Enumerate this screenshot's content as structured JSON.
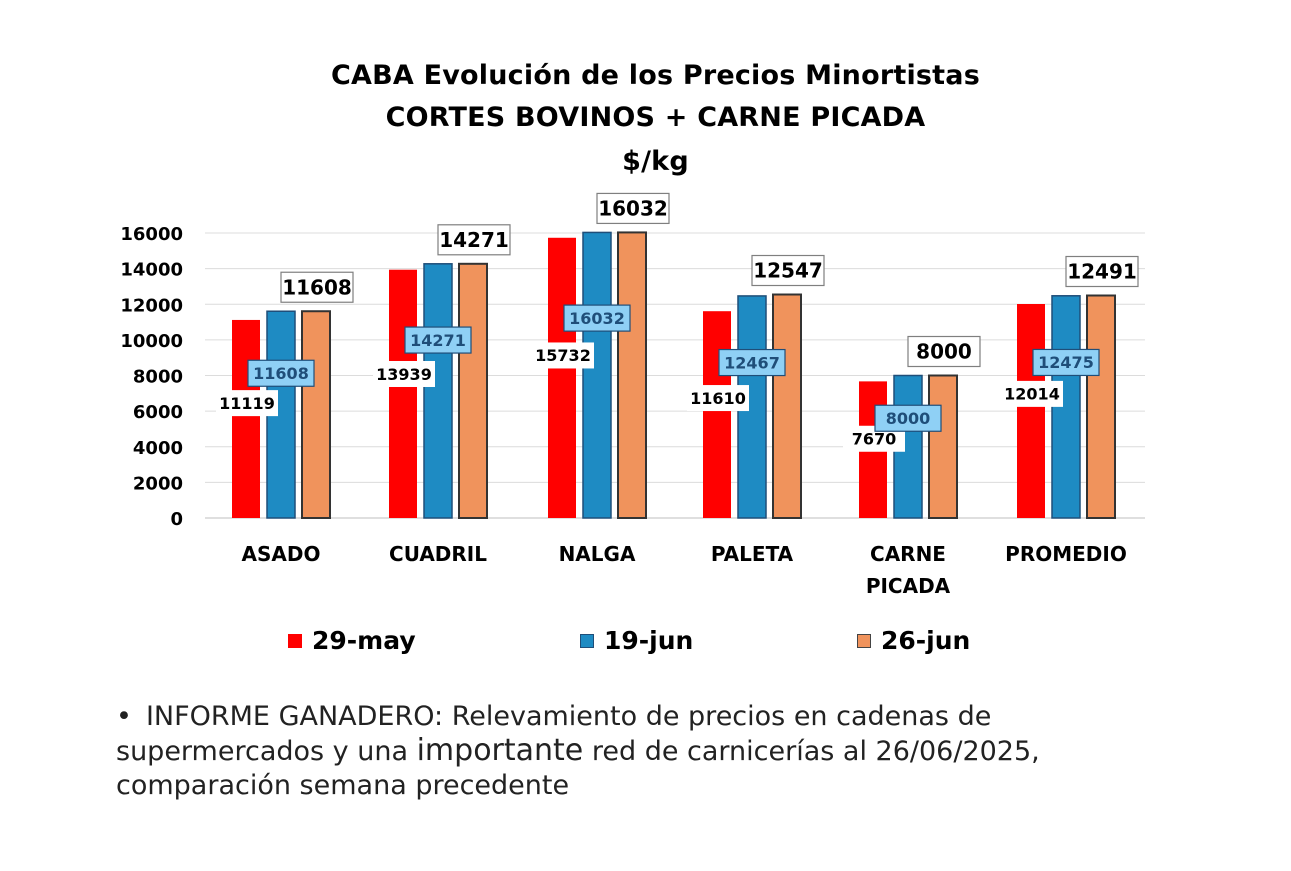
{
  "colors": {
    "s1": "#ff0000",
    "s2": "#1e8bc3",
    "s3": "#f0935c",
    "blue_label": "#8fd0f5"
  },
  "chart_data": {
    "type": "bar",
    "title": [
      "CABA Evolución de los Precios Minortistas",
      "CORTES BOVINOS + CARNE PICADA",
      "$/kg"
    ],
    "xlabel": "",
    "ylabel": "",
    "ylim": [
      0,
      16000
    ],
    "yticks": [
      "0",
      "2000",
      "4000",
      "6000",
      "8000",
      "10000",
      "12000",
      "14000",
      "16000"
    ],
    "grid": true,
    "legend_position": "bottom",
    "categories": [
      [
        "ASADO"
      ],
      [
        "CUADRIL"
      ],
      [
        "NALGA"
      ],
      [
        "PALETA"
      ],
      [
        "CARNE",
        "PICADA"
      ],
      [
        "PROMEDIO"
      ]
    ],
    "series": [
      {
        "name": "29-may",
        "values": [
          11119,
          13939,
          15732,
          11610,
          7670,
          12014
        ]
      },
      {
        "name": "19-jun",
        "values": [
          11608,
          14271,
          16032,
          12467,
          8000,
          12475
        ]
      },
      {
        "name": "26-jun",
        "values": [
          11608,
          14271,
          16032,
          12547,
          8000,
          12491
        ]
      }
    ]
  },
  "note": {
    "bullet": "•",
    "part1": "INFORME GANADERO: Relevamiento de precios en cadenas de supermercados y una ",
    "emph": "importante",
    "part2": " red de carnicerías al 26/06/2025, comparación semana precedente"
  }
}
